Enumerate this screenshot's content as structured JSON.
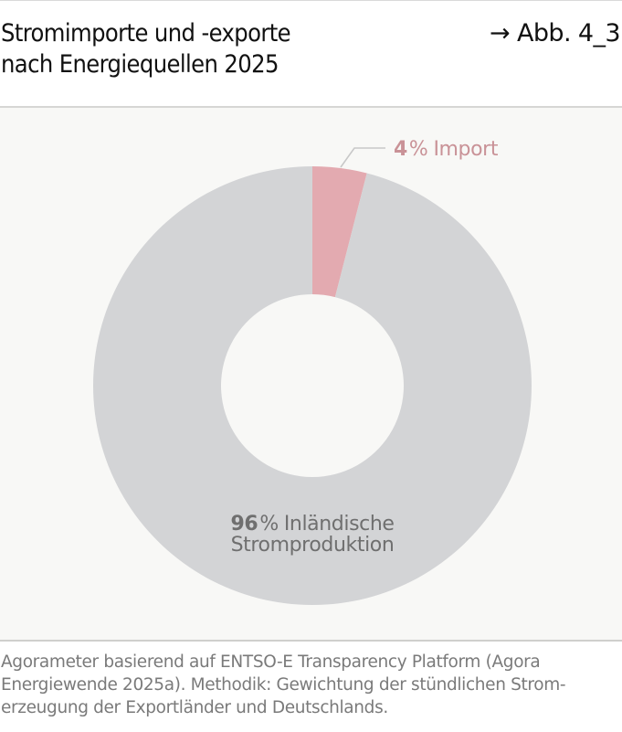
{
  "header": {
    "title_line1": "Stromimporte und -exporte",
    "title_line2": "nach Energiequellen 2025",
    "figure_ref": "→ Abb. 4_3"
  },
  "colors": {
    "import": "#e3aab0",
    "domestic": "#d3d4d6",
    "import_label": "#c99297",
    "domestic_label": "#6f6f6f",
    "panel_bg": "#f8f8f6",
    "leader_line": "#c8c8c8"
  },
  "chart_data": {
    "type": "pie",
    "title": "Stromimporte und -exporte nach Energiequellen 2025",
    "donut": true,
    "categories": [
      "Import",
      "Inländische Stromproduktion"
    ],
    "values": [
      4,
      96
    ],
    "unit": "%",
    "labels": [
      {
        "value": "4",
        "pct": "%",
        "text": "Import"
      },
      {
        "value": "96",
        "pct": "%",
        "text_line1": "Inländische",
        "text_line2": "Stromproduktion"
      }
    ],
    "start_angle_deg": 0,
    "direction": "clockwise",
    "legend": "none (direct labels)"
  },
  "footer": {
    "source_line1": "Agorameter basierend auf ENTSO-E Transparency Platform (Agora",
    "source_line2": "Energiewende 2025a). Methodik: Gewichtung der stündlichen Strom-",
    "source_line3": "erzeugung der Exportländer und Deutschlands."
  }
}
